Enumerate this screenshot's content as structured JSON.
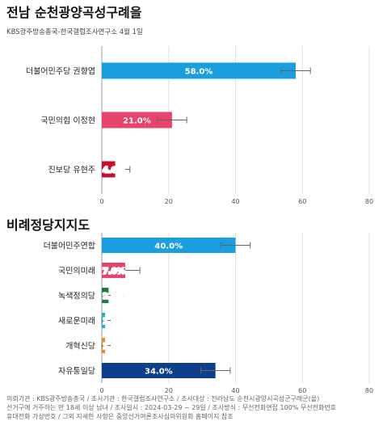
{
  "header": {
    "title": "전남 순천광양곡성구례을",
    "subtitle": "KBS광주방송총국-한국갤럽조사연구소 4월 1일"
  },
  "section2": {
    "title": "비례정당지지도"
  },
  "footer": {
    "lines": [
      "의뢰기관 : KBS광주방송총국 / 조사기관 : 한국갤럽조사연구소 / 조사대상 : 전라남도 순천시광양시곡성군구례군(을)",
      "선거구에 거주하는 만 18세 이상 남녀 / 조사일시 : 2024-03-29 ~ 29일 / 조사방식 : 무선전화면접 100% 무선전화번호",
      "휴대전화 가상번호 / 그외 자세한 사항은 중앙선거여론조사심의위원회 홈페이지 참조"
    ]
  },
  "chart_data": [
    {
      "type": "bar",
      "orientation": "horizontal",
      "title": "전남 순천광양곡성구례을",
      "subtitle": "KBS광주방송총국-한국갤럽조사연구소 4월 1일",
      "categories": [
        "더불어민주당 권향엽",
        "국민의힘 이정현",
        "진보당 유현주"
      ],
      "values": [
        58.0,
        21.0,
        4.0
      ],
      "value_labels": [
        "58.0%",
        "21.0%",
        "4.0%"
      ],
      "error_margin": 4.4,
      "colors": [
        "#1a9ee0",
        "#e8436b",
        "#c8102e"
      ],
      "xlim": [
        0,
        80
      ],
      "xticks": [
        0,
        20,
        40,
        60,
        80
      ],
      "grid": true
    },
    {
      "type": "bar",
      "orientation": "horizontal",
      "title": "비례정당지지도",
      "categories": [
        "더불어민주연합",
        "국민의미래",
        "녹색정의당",
        "새로운미래",
        "개혁신당",
        "자유통일당"
      ],
      "values": [
        40.0,
        7.0,
        2.0,
        1.0,
        1.0,
        34.0
      ],
      "value_labels": [
        "40.0%",
        "7.0%",
        "2.0%",
        "1.0%",
        "1.0%",
        "34.0%"
      ],
      "error_margin": 4.4,
      "colors": [
        "#1a9ee0",
        "#e8436b",
        "#1f7a3f",
        "#1bb5c7",
        "#f08a24",
        "#0e3f8c"
      ],
      "xlim": [
        0,
        80
      ],
      "xticks": [
        0,
        20,
        40,
        60,
        80
      ],
      "grid": true
    }
  ]
}
